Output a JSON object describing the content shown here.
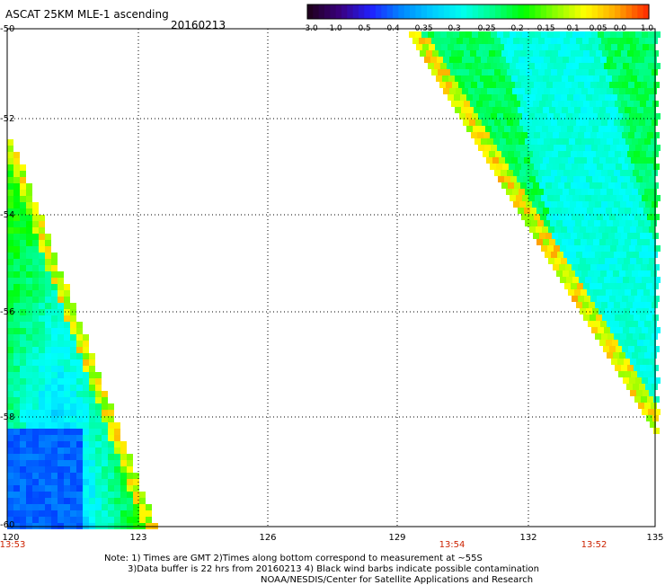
{
  "header": {
    "title": "ASCAT 25KM MLE-1 ascending",
    "date": "20160213"
  },
  "colorbar": {
    "labels": [
      "-3.0",
      "-1.0",
      "-0.5",
      "-0.4",
      "-0.35",
      "-0.3",
      "-0.25",
      "-0.2",
      "-0.15",
      "-0.1",
      "-0.05",
      "0.0",
      "1.0"
    ],
    "colors": [
      "#200020",
      "#3a0080",
      "#2020ff",
      "#0088ff",
      "#00ccff",
      "#00ffee",
      "#00ff88",
      "#00ff00",
      "#88ff00",
      "#ffff00",
      "#ffaa00",
      "#ff3300"
    ]
  },
  "axes": {
    "lat_ticks": [
      "-50",
      "-52",
      "-54",
      "-56",
      "-58",
      "-60"
    ],
    "lon_ticks": [
      "120",
      "123",
      "126",
      "129",
      "132",
      "135"
    ],
    "lat_range": [
      -60,
      -50
    ],
    "lon_range": [
      120,
      135
    ]
  },
  "times": [
    "13:53",
    "13:54",
    "13:52"
  ],
  "notes": {
    "line1": "Note: 1) Times are GMT 2)Times along bottom correspond to measurement at ~55S",
    "line2": "3)Data buffer is 22 hrs from 20160213 4) Black wind barbs indicate possible contamination",
    "line3": "NOAA/NESDIS/Center for Satellite Applications and Research"
  }
}
